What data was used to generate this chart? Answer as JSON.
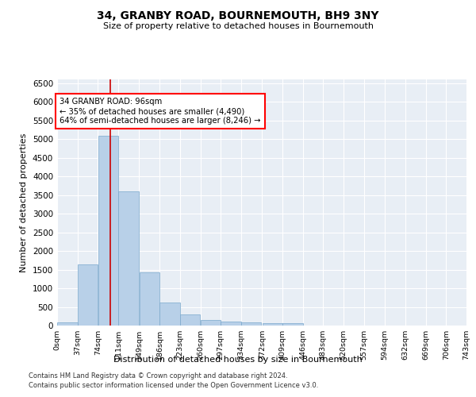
{
  "title": "34, GRANBY ROAD, BOURNEMOUTH, BH9 3NY",
  "subtitle": "Size of property relative to detached houses in Bournemouth",
  "xlabel": "Distribution of detached houses by size in Bournemouth",
  "ylabel": "Number of detached properties",
  "bar_color": "#b8d0e8",
  "bar_edge_color": "#7aa8cc",
  "background_color": "#e8eef5",
  "grid_color": "white",
  "annotation_text": "34 GRANBY ROAD: 96sqm\n← 35% of detached houses are smaller (4,490)\n64% of semi-detached houses are larger (8,246) →",
  "vline_x": 96,
  "vline_color": "#cc0000",
  "footer1": "Contains HM Land Registry data © Crown copyright and database right 2024.",
  "footer2": "Contains public sector information licensed under the Open Government Licence v3.0.",
  "bin_edges": [
    0,
    37,
    74,
    111,
    149,
    186,
    223,
    260,
    297,
    334,
    372,
    409,
    446,
    483,
    520,
    557,
    594,
    632,
    669,
    706,
    743
  ],
  "bin_labels": [
    "0sqm",
    "37sqm",
    "74sqm",
    "111sqm",
    "149sqm",
    "186sqm",
    "223sqm",
    "260sqm",
    "297sqm",
    "334sqm",
    "372sqm",
    "409sqm",
    "446sqm",
    "483sqm",
    "520sqm",
    "557sqm",
    "594sqm",
    "632sqm",
    "669sqm",
    "706sqm",
    "743sqm"
  ],
  "bar_heights": [
    75,
    1650,
    5080,
    3600,
    1420,
    620,
    295,
    145,
    110,
    80,
    70,
    65,
    0,
    0,
    0,
    0,
    0,
    0,
    0,
    0
  ],
  "ylim": [
    0,
    6600
  ],
  "yticks": [
    0,
    500,
    1000,
    1500,
    2000,
    2500,
    3000,
    3500,
    4000,
    4500,
    5000,
    5500,
    6000,
    6500
  ]
}
